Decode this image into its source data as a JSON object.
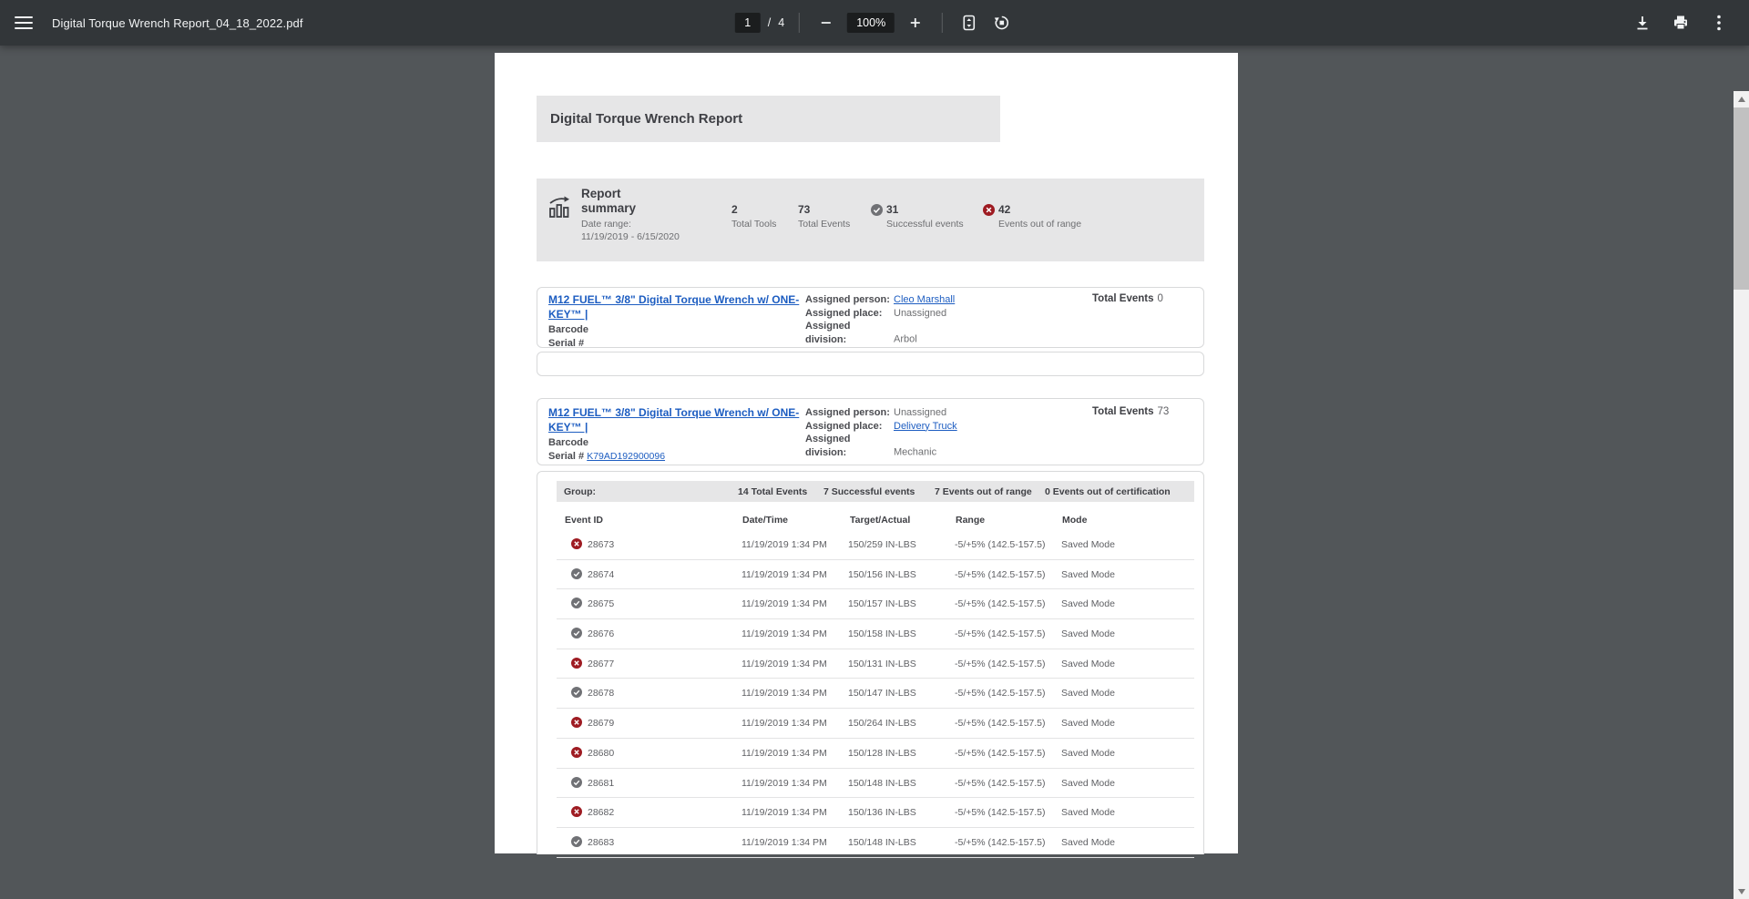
{
  "toolbar": {
    "filename": "Digital Torque Wrench Report_04_18_2022.pdf",
    "page_current": "1",
    "page_separator": "/",
    "page_total": "4",
    "zoom_level": "100%"
  },
  "colors": {
    "toolbar_bg": "#323639",
    "viewer_bg": "#525659",
    "accent_link": "#1d5dc1",
    "status_fail": "#9e1b22",
    "status_pass": "#707175"
  },
  "document": {
    "title": "Digital Torque Wrench Report",
    "summary": {
      "heading": "Report summary",
      "date_range_label": "Date range:",
      "date_range": "11/19/2019 - 6/15/2020",
      "stats": [
        {
          "icon": "none",
          "value": "2",
          "label": "Total Tools"
        },
        {
          "icon": "none",
          "value": "73",
          "label": "Total Events"
        },
        {
          "icon": "check",
          "value": "31",
          "label": "Successful events"
        },
        {
          "icon": "x",
          "value": "42",
          "label": "Events out of range"
        }
      ]
    },
    "tools": [
      {
        "name": "M12 FUEL™ 3/8\" Digital Torque Wrench w/ ONE-KEY™ |",
        "barcode_label": "Barcode",
        "serial_label": "Serial #",
        "serial": "",
        "assigned_person_label": "Assigned person:",
        "assigned_person": "Cleo Marshall",
        "assigned_place_label": "Assigned place:",
        "assigned_place": "Unassigned",
        "assigned_division_label": "Assigned division:",
        "assigned_division": "Arbol",
        "total_events_label": "Total Events",
        "total_events": "0"
      },
      {
        "name": "M12 FUEL™ 3/8\" Digital Torque Wrench w/ ONE-KEY™ |",
        "barcode_label": "Barcode",
        "serial_label": "Serial #",
        "serial": "K79AD192900096",
        "assigned_person_label": "Assigned person:",
        "assigned_person": "Unassigned",
        "assigned_place_label": "Assigned place:",
        "assigned_place": "Delivery Truck",
        "assigned_division_label": "Assigned division:",
        "assigned_division": "Mechanic",
        "total_events_label": "Total Events",
        "total_events": "73"
      }
    ],
    "group": {
      "label": "Group:",
      "stats": [
        "14 Total Events",
        "7 Successful events",
        "7 Events out of range",
        "0 Events out of certification"
      ]
    },
    "table": {
      "headers": [
        "Event ID",
        "Date/Time",
        "Target/Actual",
        "Range",
        "Mode"
      ],
      "rows": [
        {
          "status": "fail",
          "id": "28673",
          "datetime": "11/19/2019 1:34 PM",
          "target": "150/259 IN-LBS",
          "range": "-5/+5% (142.5-157.5)",
          "mode": "Saved Mode"
        },
        {
          "status": "pass",
          "id": "28674",
          "datetime": "11/19/2019 1:34 PM",
          "target": "150/156 IN-LBS",
          "range": "-5/+5% (142.5-157.5)",
          "mode": "Saved Mode"
        },
        {
          "status": "pass",
          "id": "28675",
          "datetime": "11/19/2019 1:34 PM",
          "target": "150/157 IN-LBS",
          "range": "-5/+5% (142.5-157.5)",
          "mode": "Saved Mode"
        },
        {
          "status": "pass",
          "id": "28676",
          "datetime": "11/19/2019 1:34 PM",
          "target": "150/158 IN-LBS",
          "range": "-5/+5% (142.5-157.5)",
          "mode": "Saved Mode"
        },
        {
          "status": "fail",
          "id": "28677",
          "datetime": "11/19/2019 1:34 PM",
          "target": "150/131 IN-LBS",
          "range": "-5/+5% (142.5-157.5)",
          "mode": "Saved Mode"
        },
        {
          "status": "pass",
          "id": "28678",
          "datetime": "11/19/2019 1:34 PM",
          "target": "150/147 IN-LBS",
          "range": "-5/+5% (142.5-157.5)",
          "mode": "Saved Mode"
        },
        {
          "status": "fail",
          "id": "28679",
          "datetime": "11/19/2019 1:34 PM",
          "target": "150/264 IN-LBS",
          "range": "-5/+5% (142.5-157.5)",
          "mode": "Saved Mode"
        },
        {
          "status": "fail",
          "id": "28680",
          "datetime": "11/19/2019 1:34 PM",
          "target": "150/128 IN-LBS",
          "range": "-5/+5% (142.5-157.5)",
          "mode": "Saved Mode"
        },
        {
          "status": "pass",
          "id": "28681",
          "datetime": "11/19/2019 1:34 PM",
          "target": "150/148 IN-LBS",
          "range": "-5/+5% (142.5-157.5)",
          "mode": "Saved Mode"
        },
        {
          "status": "fail",
          "id": "28682",
          "datetime": "11/19/2019 1:34 PM",
          "target": "150/136 IN-LBS",
          "range": "-5/+5% (142.5-157.5)",
          "mode": "Saved Mode"
        },
        {
          "status": "pass",
          "id": "28683",
          "datetime": "11/19/2019 1:34 PM",
          "target": "150/148 IN-LBS",
          "range": "-5/+5% (142.5-157.5)",
          "mode": "Saved Mode"
        }
      ]
    }
  }
}
